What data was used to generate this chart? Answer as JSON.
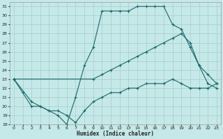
{
  "xlabel": "Humidex (Indice chaleur)",
  "bg_color": "#c5e8e8",
  "grid_color": "#a8cccc",
  "line_color": "#1a6868",
  "xlim_min": -0.5,
  "xlim_max": 23.5,
  "ylim_min": 18,
  "ylim_max": 31.5,
  "yticks": [
    18,
    19,
    20,
    21,
    22,
    23,
    24,
    25,
    26,
    27,
    28,
    29,
    30,
    31
  ],
  "xticks": [
    0,
    1,
    2,
    3,
    4,
    5,
    6,
    7,
    8,
    9,
    10,
    11,
    12,
    13,
    14,
    15,
    16,
    17,
    18,
    19,
    20,
    21,
    22,
    23
  ],
  "line1_x": [
    0,
    1,
    2,
    3,
    4,
    5,
    6,
    7,
    8,
    9,
    10,
    11,
    12,
    13,
    14,
    15,
    16,
    17,
    18,
    19,
    20,
    21,
    22,
    23
  ],
  "line1_y": [
    23,
    21.5,
    20,
    20,
    19.5,
    19,
    18,
    21,
    24.5,
    26.5,
    30.5,
    30.5,
    30.5,
    30.5,
    31,
    31,
    31,
    31,
    29,
    28.5,
    26.5,
    24.5,
    22.5,
    22
  ],
  "line2_x": [
    0,
    9,
    10,
    11,
    12,
    13,
    14,
    15,
    16,
    17,
    18,
    19,
    20,
    21,
    22,
    23
  ],
  "line2_y": [
    23,
    23,
    23.5,
    24,
    24.5,
    25,
    25.5,
    26,
    26.5,
    27,
    27.5,
    28,
    27,
    24.5,
    23.5,
    22.5
  ],
  "line3_x": [
    0,
    2,
    3,
    4,
    5,
    6,
    7,
    8,
    9,
    10,
    11,
    12,
    13,
    14,
    15,
    16,
    17,
    18,
    19,
    20,
    21,
    22,
    23
  ],
  "line3_y": [
    23,
    20.5,
    20,
    19.5,
    19.5,
    19,
    18.2,
    19.5,
    20.5,
    21,
    21.5,
    21.5,
    22,
    22,
    22.5,
    22.5,
    22.5,
    23,
    22.5,
    22,
    22,
    22,
    22.5
  ]
}
